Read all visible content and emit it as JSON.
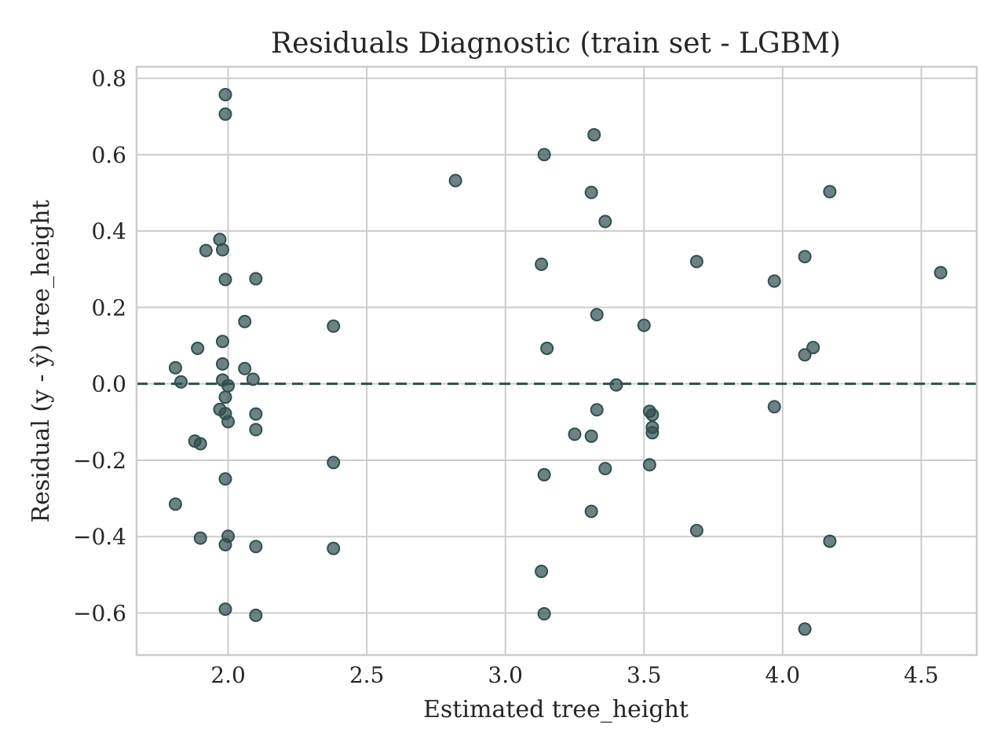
{
  "chart_data": {
    "type": "scatter",
    "title": "Residuals Diagnostic (train set - LGBM)",
    "xlabel": "Estimated tree_height",
    "ylabel": "Residual (y - ŷ) tree_height",
    "xlim": [
      1.67,
      4.7
    ],
    "ylim": [
      -0.71,
      0.83
    ],
    "xticks": [
      2.0,
      2.5,
      3.0,
      3.5,
      4.0,
      4.5
    ],
    "xtick_labels": [
      "2.0",
      "2.5",
      "3.0",
      "3.5",
      "4.0",
      "4.5"
    ],
    "yticks": [
      0.8,
      0.6,
      0.4,
      0.2,
      0.0,
      -0.2,
      -0.4,
      -0.6
    ],
    "ytick_labels": [
      "0.8",
      "0.6",
      "0.4",
      "0.2",
      "0.0",
      "−0.2",
      "−0.4",
      "−0.6"
    ],
    "grid": true,
    "reference_line": {
      "y": 0.0,
      "style": "dashed",
      "color": "#2f4f4f"
    },
    "marker_color": "#2f4f4f",
    "marker_opacity": 0.7,
    "points": [
      {
        "x": 1.99,
        "y": 0.757
      },
      {
        "x": 1.99,
        "y": 0.706
      },
      {
        "x": 1.97,
        "y": 0.378
      },
      {
        "x": 1.92,
        "y": 0.349
      },
      {
        "x": 1.98,
        "y": 0.351
      },
      {
        "x": 1.99,
        "y": 0.273
      },
      {
        "x": 2.1,
        "y": 0.275
      },
      {
        "x": 2.06,
        "y": 0.163
      },
      {
        "x": 1.98,
        "y": 0.111
      },
      {
        "x": 1.89,
        "y": 0.093
      },
      {
        "x": 1.81,
        "y": 0.042
      },
      {
        "x": 1.98,
        "y": 0.052
      },
      {
        "x": 2.06,
        "y": 0.04
      },
      {
        "x": 1.83,
        "y": 0.005
      },
      {
        "x": 1.98,
        "y": 0.01
      },
      {
        "x": 2.09,
        "y": 0.012
      },
      {
        "x": 2.0,
        "y": -0.005
      },
      {
        "x": 1.99,
        "y": -0.035
      },
      {
        "x": 1.97,
        "y": -0.067
      },
      {
        "x": 1.99,
        "y": -0.078
      },
      {
        "x": 2.1,
        "y": -0.079
      },
      {
        "x": 2.0,
        "y": -0.099
      },
      {
        "x": 2.1,
        "y": -0.12
      },
      {
        "x": 1.88,
        "y": -0.15
      },
      {
        "x": 1.9,
        "y": -0.157
      },
      {
        "x": 1.99,
        "y": -0.249
      },
      {
        "x": 1.81,
        "y": -0.315
      },
      {
        "x": 1.9,
        "y": -0.404
      },
      {
        "x": 2.0,
        "y": -0.399
      },
      {
        "x": 1.99,
        "y": -0.421
      },
      {
        "x": 2.1,
        "y": -0.426
      },
      {
        "x": 1.99,
        "y": -0.59
      },
      {
        "x": 2.1,
        "y": -0.606
      },
      {
        "x": 2.38,
        "y": 0.151
      },
      {
        "x": 2.38,
        "y": -0.206
      },
      {
        "x": 2.38,
        "y": -0.431
      },
      {
        "x": 2.82,
        "y": 0.532
      },
      {
        "x": 3.14,
        "y": 0.6
      },
      {
        "x": 3.13,
        "y": 0.313
      },
      {
        "x": 3.15,
        "y": 0.093
      },
      {
        "x": 3.14,
        "y": -0.238
      },
      {
        "x": 3.13,
        "y": -0.491
      },
      {
        "x": 3.14,
        "y": -0.602
      },
      {
        "x": 3.25,
        "y": -0.132
      },
      {
        "x": 3.31,
        "y": -0.137
      },
      {
        "x": 3.31,
        "y": -0.334
      },
      {
        "x": 3.32,
        "y": 0.652
      },
      {
        "x": 3.31,
        "y": 0.501
      },
      {
        "x": 3.33,
        "y": 0.181
      },
      {
        "x": 3.33,
        "y": -0.068
      },
      {
        "x": 3.36,
        "y": 0.425
      },
      {
        "x": 3.36,
        "y": -0.222
      },
      {
        "x": 3.4,
        "y": -0.003
      },
      {
        "x": 3.5,
        "y": 0.153
      },
      {
        "x": 3.52,
        "y": -0.072
      },
      {
        "x": 3.53,
        "y": -0.081
      },
      {
        "x": 3.53,
        "y": -0.114
      },
      {
        "x": 3.53,
        "y": -0.128
      },
      {
        "x": 3.52,
        "y": -0.212
      },
      {
        "x": 3.69,
        "y": 0.32
      },
      {
        "x": 3.69,
        "y": -0.384
      },
      {
        "x": 3.97,
        "y": 0.269
      },
      {
        "x": 3.97,
        "y": -0.06
      },
      {
        "x": 4.08,
        "y": 0.333
      },
      {
        "x": 4.08,
        "y": 0.076
      },
      {
        "x": 4.11,
        "y": 0.095
      },
      {
        "x": 4.08,
        "y": -0.642
      },
      {
        "x": 4.17,
        "y": 0.503
      },
      {
        "x": 4.17,
        "y": -0.412
      },
      {
        "x": 4.57,
        "y": 0.291
      }
    ]
  }
}
